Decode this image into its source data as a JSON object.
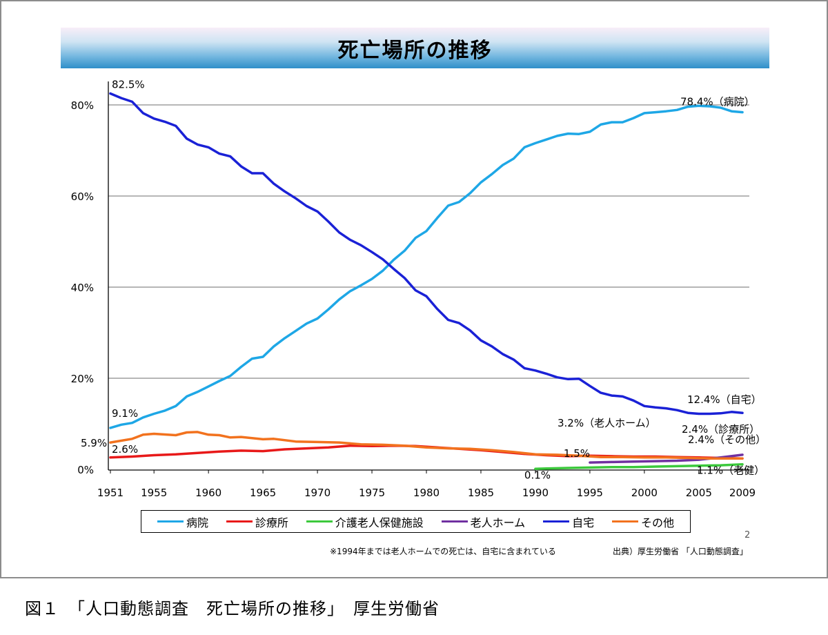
{
  "slide": {
    "title": "死亡場所の推移",
    "page_number": "2",
    "note": "※1994年までは老人ホームでの死亡は、自宅に含まれている",
    "source": "出典）厚生労働省 「人口動態調査」"
  },
  "caption": "図１　「人口動態調査　死亡場所の推移」　厚生労働省",
  "chart_data": {
    "type": "line",
    "title": "死亡場所の推移",
    "xlabel": "",
    "ylabel": "",
    "xlim": [
      1951,
      2009
    ],
    "ylim": [
      0,
      82.5
    ],
    "grid": true,
    "legend_placement": "bottom",
    "x_ticks": [
      "1951",
      "1955",
      "1960",
      "1965",
      "1970",
      "1975",
      "1980",
      "1985",
      "1990",
      "1995",
      "2000",
      "2005",
      "2009"
    ],
    "y_ticks": [
      "0%",
      "20%",
      "40%",
      "60%",
      "80%"
    ],
    "series": [
      {
        "name": "病院",
        "color": "#1ea7e6",
        "x": [
          1951,
          1952,
          1953,
          1954,
          1955,
          1956,
          1957,
          1958,
          1959,
          1960,
          1961,
          1962,
          1963,
          1964,
          1965,
          1966,
          1967,
          1968,
          1969,
          1970,
          1971,
          1972,
          1973,
          1974,
          1975,
          1976,
          1977,
          1978,
          1979,
          1980,
          1981,
          1982,
          1983,
          1984,
          1985,
          1986,
          1987,
          1988,
          1989,
          1990,
          1991,
          1992,
          1993,
          1994,
          1995,
          1996,
          1997,
          1998,
          1999,
          2000,
          2001,
          2002,
          2003,
          2004,
          2005,
          2006,
          2007,
          2008,
          2009
        ],
        "values": [
          9.1,
          9.8,
          10.2,
          11.4,
          12.2,
          12.9,
          13.9,
          16.0,
          17.0,
          18.2,
          19.4,
          20.5,
          22.5,
          24.3,
          24.7,
          27.0,
          28.8,
          30.4,
          32.0,
          33.1,
          35.1,
          37.3,
          39.1,
          40.4,
          41.8,
          43.6,
          46.0,
          48.0,
          50.8,
          52.3,
          55.2,
          57.9,
          58.7,
          60.6,
          63.0,
          64.8,
          66.8,
          68.2,
          70.7,
          71.6,
          72.4,
          73.2,
          73.7,
          73.6,
          74.1,
          75.7,
          76.2,
          76.2,
          77.1,
          78.2,
          78.4,
          78.6,
          78.9,
          79.6,
          79.8,
          79.7,
          79.4,
          78.6,
          78.4
        ]
      },
      {
        "name": "診療所",
        "color": "#e81919",
        "x": [
          1951,
          1953,
          1955,
          1957,
          1959,
          1961,
          1963,
          1965,
          1967,
          1969,
          1971,
          1973,
          1975,
          1977,
          1979,
          1981,
          1983,
          1985,
          1987,
          1989,
          1991,
          1993,
          1995,
          1997,
          1999,
          2001,
          2003,
          2005,
          2007,
          2009
        ],
        "values": [
          2.6,
          2.8,
          3.1,
          3.3,
          3.6,
          3.9,
          4.1,
          4.0,
          4.4,
          4.6,
          4.8,
          5.2,
          5.1,
          5.2,
          5.1,
          4.8,
          4.5,
          4.2,
          3.8,
          3.4,
          3.1,
          2.9,
          3.0,
          2.9,
          2.8,
          2.8,
          2.7,
          2.6,
          2.5,
          2.4
        ]
      },
      {
        "name": "介護老人保健施設",
        "color": "#3cc93c",
        "x": [
          1990,
          1991,
          1993,
          1995,
          1997,
          1999,
          2001,
          2003,
          2005,
          2007,
          2009
        ],
        "values": [
          0.1,
          0.2,
          0.3,
          0.4,
          0.5,
          0.5,
          0.6,
          0.7,
          0.8,
          0.9,
          1.1
        ]
      },
      {
        "name": "老人ホーム",
        "color": "#7030a0",
        "x": [
          1995,
          1997,
          1999,
          2001,
          2003,
          2005,
          2007,
          2009
        ],
        "values": [
          1.5,
          1.6,
          1.7,
          1.8,
          1.9,
          2.1,
          2.6,
          3.2
        ]
      },
      {
        "name": "自宅",
        "color": "#1a21d6",
        "x": [
          1951,
          1952,
          1953,
          1954,
          1955,
          1956,
          1957,
          1958,
          1959,
          1960,
          1961,
          1962,
          1963,
          1964,
          1965,
          1966,
          1967,
          1968,
          1969,
          1970,
          1971,
          1972,
          1973,
          1974,
          1975,
          1976,
          1977,
          1978,
          1979,
          1980,
          1981,
          1982,
          1983,
          1984,
          1985,
          1986,
          1987,
          1988,
          1989,
          1990,
          1991,
          1992,
          1993,
          1994,
          1995,
          1996,
          1997,
          1998,
          1999,
          2000,
          2001,
          2002,
          2003,
          2004,
          2005,
          2006,
          2007,
          2008,
          2009
        ],
        "values": [
          82.5,
          81.5,
          80.7,
          78.2,
          77.0,
          76.3,
          75.4,
          72.6,
          71.3,
          70.7,
          69.3,
          68.7,
          66.5,
          65.0,
          65.0,
          62.7,
          61.0,
          59.5,
          57.8,
          56.6,
          54.4,
          52.0,
          50.4,
          49.2,
          47.7,
          46.1,
          44.0,
          42.0,
          39.3,
          38.0,
          35.2,
          32.8,
          32.1,
          30.5,
          28.3,
          27.0,
          25.3,
          24.1,
          22.2,
          21.7,
          21.0,
          20.2,
          19.8,
          19.9,
          18.3,
          16.8,
          16.2,
          16.0,
          15.1,
          13.9,
          13.6,
          13.4,
          13.0,
          12.4,
          12.2,
          12.2,
          12.3,
          12.6,
          12.4
        ]
      },
      {
        "name": "その他",
        "color": "#f2721e",
        "x": [
          1951,
          1953,
          1954,
          1955,
          1957,
          1958,
          1959,
          1960,
          1961,
          1962,
          1963,
          1965,
          1966,
          1968,
          1970,
          1972,
          1974,
          1976,
          1978,
          1980,
          1982,
          1984,
          1986,
          1988,
          1990,
          1992,
          1994,
          1996,
          1998,
          2000,
          2002,
          2004,
          2006,
          2008,
          2009
        ],
        "values": [
          5.9,
          6.7,
          7.6,
          7.8,
          7.5,
          8.1,
          8.2,
          7.6,
          7.5,
          7.0,
          7.1,
          6.6,
          6.7,
          6.1,
          6.0,
          5.9,
          5.5,
          5.4,
          5.2,
          4.8,
          4.6,
          4.5,
          4.2,
          3.8,
          3.3,
          3.2,
          3.0,
          2.7,
          2.7,
          2.6,
          2.6,
          2.5,
          2.4,
          2.4,
          2.4
        ]
      }
    ],
    "annotations": [
      {
        "text": "82.5%",
        "x": 1951,
        "y": 82.5
      },
      {
        "text": "78.4%（病院）",
        "x": 2009,
        "y": 78.4
      },
      {
        "text": "9.1%",
        "x": 1951,
        "y": 9.1
      },
      {
        "text": "5.9%",
        "x": 1951,
        "y": 5.9
      },
      {
        "text": "2.6%",
        "x": 1951,
        "y": 2.6
      },
      {
        "text": "12.4%（自宅）",
        "x": 2009,
        "y": 12.4
      },
      {
        "text": "3.2%（老人ホーム）",
        "x": 2009,
        "y": 3.2
      },
      {
        "text": "2.4%（診療所）",
        "x": 2009,
        "y": 2.4
      },
      {
        "text": "2.4%（その他）",
        "x": 2009,
        "y": 2.4
      },
      {
        "text": "1.5%",
        "x": 1995,
        "y": 1.5
      },
      {
        "text": "0.1%",
        "x": 1990,
        "y": 0.1
      },
      {
        "text": "1.1%（老健）",
        "x": 2009,
        "y": 1.1
      }
    ]
  }
}
